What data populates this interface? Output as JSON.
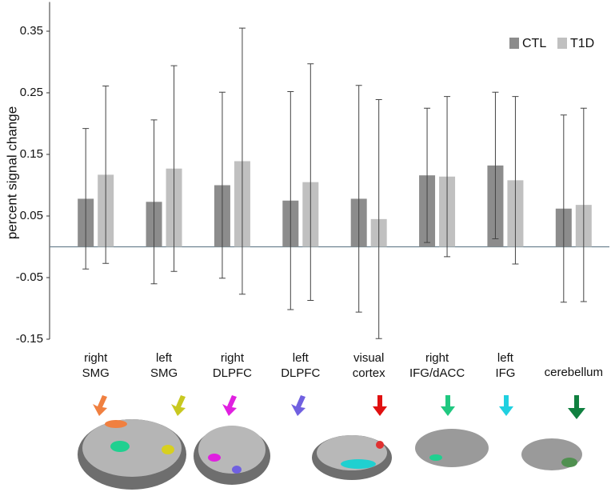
{
  "chart_data": {
    "type": "bar",
    "y_label": "percent signal change",
    "categories": [
      "right SMG",
      "left SMG",
      "right DLPFC",
      "left DLPFC",
      "visual cortex",
      "right IFG/dACC",
      "left IFG",
      "cerebellum"
    ],
    "series": [
      {
        "name": "CTL",
        "color": "#8c8c8c",
        "values": [
          0.078,
          0.073,
          0.1,
          0.075,
          0.078,
          0.116,
          0.132,
          0.062
        ],
        "errors": [
          0.114,
          0.133,
          0.151,
          0.177,
          0.184,
          0.109,
          0.119,
          0.152
        ]
      },
      {
        "name": "T1D",
        "color": "#c0c0c0",
        "values": [
          0.117,
          0.127,
          0.139,
          0.105,
          0.045,
          0.114,
          0.108,
          0.068
        ],
        "errors": [
          0.144,
          0.167,
          0.216,
          0.192,
          0.194,
          0.13,
          0.136,
          0.157
        ]
      }
    ],
    "ylim": [
      -0.15,
      0.4
    ],
    "yticks": [
      0.35,
      0.25,
      0.15,
      0.05,
      -0.05,
      -0.15
    ],
    "grid": false,
    "legend": "top-right"
  }
}
